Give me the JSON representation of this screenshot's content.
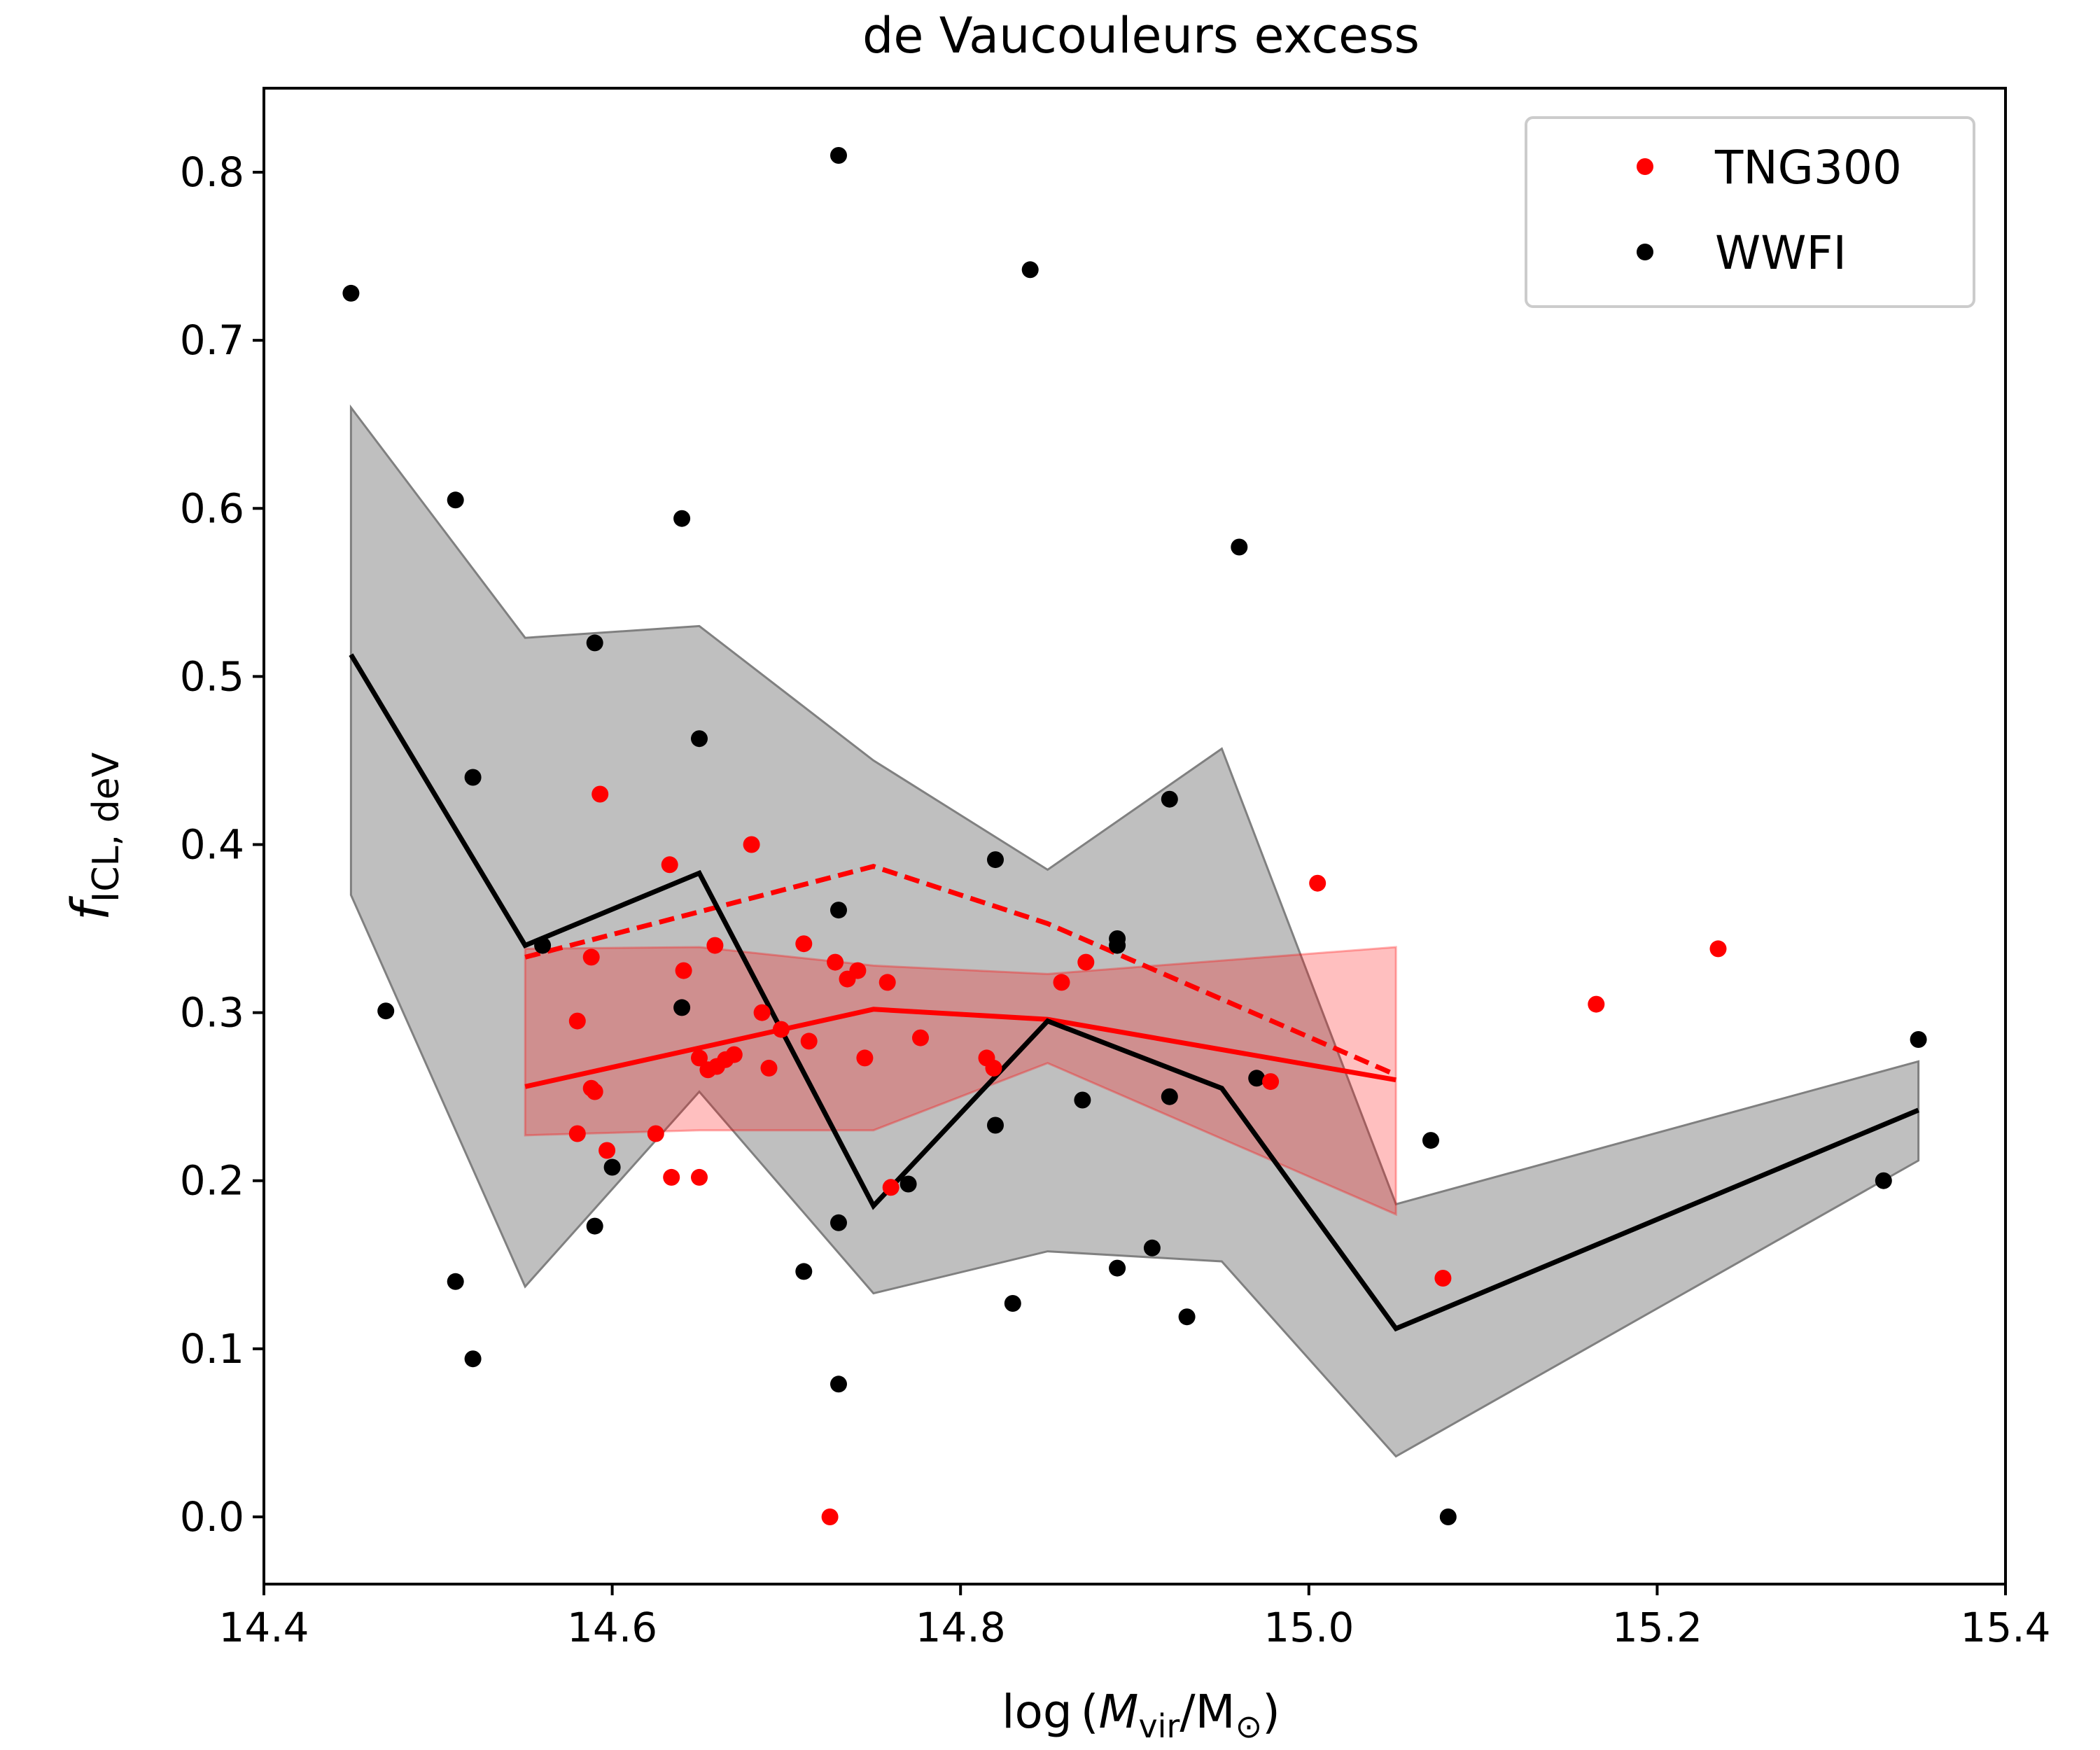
{
  "chart_data": {
    "type": "scatter",
    "title": "de Vaucouleurs excess",
    "xlabel": {
      "pre": "log",
      "paren_open": "(",
      "M": "M",
      "vir": "vir",
      "slash": "/M",
      "sun": "⊙",
      "paren_close": ")"
    },
    "ylabel": {
      "f": "f",
      "sub": "ICL, deV"
    },
    "xlim": [
      14.4,
      15.4
    ],
    "ylim": [
      -0.04,
      0.85
    ],
    "xticks": [
      "14.4",
      "14.6",
      "14.8",
      "15.0",
      "15.2",
      "15.4"
    ],
    "yticks": [
      "0.0",
      "0.1",
      "0.2",
      "0.3",
      "0.4",
      "0.5",
      "0.6",
      "0.7",
      "0.8"
    ],
    "legend": {
      "placement": "top-right",
      "entries": [
        "TNG300",
        "WWFI"
      ]
    },
    "colors": {
      "tng": "#ff0000",
      "wwfi": "#000000",
      "wwfi_band": "#bfbfbf",
      "tng_band": "#ffbfbf"
    },
    "series": [
      {
        "name": "TNG300",
        "points": [
          [
            14.58,
            0.295
          ],
          [
            14.58,
            0.228
          ],
          [
            14.588,
            0.333
          ],
          [
            14.588,
            0.255
          ],
          [
            14.59,
            0.253
          ],
          [
            14.593,
            0.43
          ],
          [
            14.597,
            0.218
          ],
          [
            14.625,
            0.228
          ],
          [
            14.633,
            0.388
          ],
          [
            14.634,
            0.202
          ],
          [
            14.641,
            0.325
          ],
          [
            14.65,
            0.273
          ],
          [
            14.65,
            0.202
          ],
          [
            14.655,
            0.266
          ],
          [
            14.659,
            0.34
          ],
          [
            14.66,
            0.268
          ],
          [
            14.665,
            0.272
          ],
          [
            14.67,
            0.275
          ],
          [
            14.68,
            0.4
          ],
          [
            14.686,
            0.3
          ],
          [
            14.69,
            0.267
          ],
          [
            14.697,
            0.29
          ],
          [
            14.71,
            0.341
          ],
          [
            14.713,
            0.283
          ],
          [
            14.725,
            0.0
          ],
          [
            14.728,
            0.33
          ],
          [
            14.735,
            0.32
          ],
          [
            14.741,
            0.325
          ],
          [
            14.745,
            0.273
          ],
          [
            14.758,
            0.318
          ],
          [
            14.76,
            0.196
          ],
          [
            14.777,
            0.285
          ],
          [
            14.815,
            0.273
          ],
          [
            14.819,
            0.267
          ],
          [
            14.858,
            0.318
          ],
          [
            14.872,
            0.33
          ],
          [
            14.978,
            0.259
          ],
          [
            15.005,
            0.377
          ],
          [
            15.077,
            0.142
          ],
          [
            15.165,
            0.305
          ],
          [
            15.235,
            0.338
          ]
        ],
        "median": {
          "x": [
            14.55,
            14.75,
            14.85,
            15.05
          ],
          "y": [
            0.256,
            0.302,
            0.296,
            0.26
          ]
        },
        "band": {
          "x": [
            14.55,
            14.65,
            14.75,
            14.85,
            15.05
          ],
          "lo": [
            0.227,
            0.23,
            0.23,
            0.27,
            0.18
          ],
          "hi": [
            0.338,
            0.339,
            0.328,
            0.323,
            0.339
          ]
        },
        "upper_line": {
          "x": [
            14.55,
            14.75,
            14.85,
            15.05
          ],
          "y": [
            0.333,
            0.387,
            0.353,
            0.263
          ]
        }
      },
      {
        "name": "WWFI",
        "points": [
          [
            14.45,
            0.728
          ],
          [
            14.47,
            0.301
          ],
          [
            14.51,
            0.605
          ],
          [
            14.51,
            0.14
          ],
          [
            14.52,
            0.44
          ],
          [
            14.52,
            0.094
          ],
          [
            14.56,
            0.34
          ],
          [
            14.59,
            0.52
          ],
          [
            14.59,
            0.173
          ],
          [
            14.6,
            0.208
          ],
          [
            14.64,
            0.594
          ],
          [
            14.64,
            0.303
          ],
          [
            14.65,
            0.463
          ],
          [
            14.71,
            0.146
          ],
          [
            14.73,
            0.81
          ],
          [
            14.73,
            0.361
          ],
          [
            14.73,
            0.175
          ],
          [
            14.73,
            0.079
          ],
          [
            14.77,
            0.198
          ],
          [
            14.82,
            0.391
          ],
          [
            14.82,
            0.233
          ],
          [
            14.83,
            0.127
          ],
          [
            14.84,
            0.742
          ],
          [
            14.87,
            0.248
          ],
          [
            14.89,
            0.344
          ],
          [
            14.89,
            0.34
          ],
          [
            14.89,
            0.148
          ],
          [
            14.91,
            0.16
          ],
          [
            14.92,
            0.427
          ],
          [
            14.92,
            0.25
          ],
          [
            14.93,
            0.119
          ],
          [
            14.96,
            0.577
          ],
          [
            14.97,
            0.261
          ],
          [
            15.07,
            0.224
          ],
          [
            15.08,
            0.0
          ],
          [
            15.33,
            0.2
          ],
          [
            15.35,
            0.284
          ]
        ],
        "median": {
          "x": [
            14.45,
            14.55,
            14.65,
            14.75,
            14.85,
            14.95,
            15.05,
            15.35
          ],
          "y": [
            0.513,
            0.34,
            0.383,
            0.185,
            0.295,
            0.255,
            0.112,
            0.242
          ]
        },
        "band": {
          "x": [
            14.45,
            14.55,
            14.65,
            14.75,
            14.85,
            14.95,
            15.05,
            15.35
          ],
          "lo": [
            0.37,
            0.137,
            0.253,
            0.133,
            0.158,
            0.152,
            0.036,
            0.212
          ],
          "hi": [
            0.66,
            0.523,
            0.53,
            0.45,
            0.385,
            0.457,
            0.186,
            0.271
          ]
        }
      }
    ]
  }
}
